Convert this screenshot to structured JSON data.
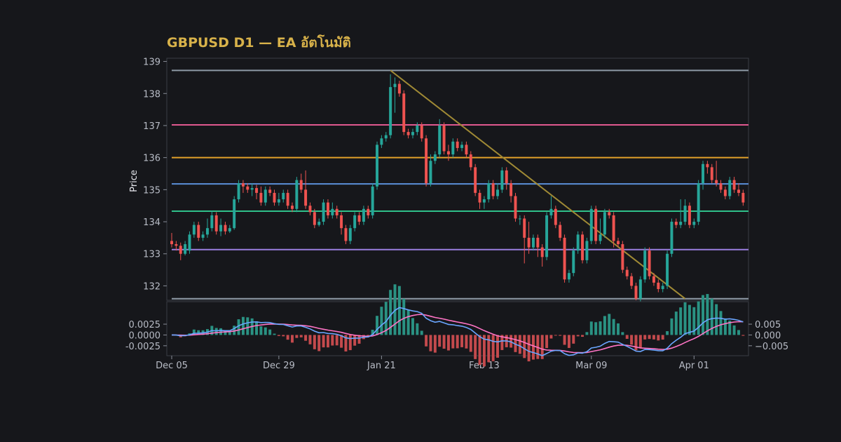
{
  "chart_data": {
    "type": "candlestick",
    "title": "GBPUSD D1 — EA อัตโนมัติ",
    "ylabel": "Price",
    "ylim": [
      131.55,
      139.1
    ],
    "yticks": [
      132,
      133,
      134,
      135,
      136,
      137,
      138,
      139
    ],
    "xtick_labels": [
      "Dec 05",
      "Dec 29",
      "Jan 21",
      "Feb 13",
      "Mar 09",
      "Apr 01"
    ],
    "xtick_index": [
      0,
      24,
      47,
      70,
      94,
      117
    ],
    "candles": [
      [
        133.4,
        133.3,
        133.65,
        133.2
      ],
      [
        133.3,
        133.25,
        133.4,
        133.1
      ],
      [
        133.25,
        133.0,
        133.35,
        132.8
      ],
      [
        133.0,
        133.3,
        133.4,
        132.95
      ],
      [
        133.1,
        133.6,
        133.7,
        133.0
      ],
      [
        133.6,
        133.9,
        134.0,
        133.5
      ],
      [
        133.9,
        133.5,
        134.0,
        133.4
      ],
      [
        133.5,
        133.6,
        133.7,
        133.4
      ],
      [
        133.6,
        133.8,
        134.1,
        133.5
      ],
      [
        133.8,
        134.2,
        134.35,
        133.7
      ],
      [
        134.2,
        133.7,
        134.3,
        133.6
      ],
      [
        133.7,
        133.9,
        134.1,
        133.55
      ],
      [
        133.9,
        133.7,
        134.0,
        133.6
      ],
      [
        133.7,
        133.8,
        133.9,
        133.65
      ],
      [
        133.8,
        134.7,
        134.8,
        133.75
      ],
      [
        134.7,
        135.2,
        135.3,
        134.6
      ],
      [
        135.2,
        135.1,
        135.3,
        134.9
      ],
      [
        135.1,
        135.0,
        135.2,
        134.9
      ],
      [
        135.0,
        135.05,
        135.2,
        134.8
      ],
      [
        135.05,
        134.9,
        135.15,
        134.7
      ],
      [
        134.9,
        134.6,
        135.1,
        134.5
      ],
      [
        134.6,
        135.0,
        135.1,
        134.5
      ],
      [
        135.0,
        134.9,
        135.1,
        134.8
      ],
      [
        134.9,
        134.6,
        135.0,
        134.5
      ],
      [
        134.6,
        134.7,
        134.9,
        134.5
      ],
      [
        134.7,
        134.9,
        135.0,
        134.6
      ],
      [
        134.9,
        134.5,
        135.0,
        134.4
      ],
      [
        134.5,
        134.4,
        134.6,
        134.3
      ],
      [
        134.4,
        135.3,
        135.4,
        134.3
      ],
      [
        135.3,
        135.0,
        135.5,
        134.9
      ],
      [
        135.0,
        134.5,
        135.6,
        134.4
      ],
      [
        134.5,
        134.3,
        134.6,
        134.2
      ],
      [
        134.3,
        133.9,
        134.4,
        133.8
      ],
      [
        133.9,
        134.0,
        134.1,
        133.85
      ],
      [
        134.0,
        134.6,
        134.7,
        133.9
      ],
      [
        134.6,
        134.2,
        134.7,
        134.1
      ],
      [
        134.2,
        134.4,
        134.6,
        134.1
      ],
      [
        134.4,
        134.2,
        134.5,
        134.1
      ],
      [
        134.2,
        133.8,
        134.3,
        133.6
      ],
      [
        133.8,
        133.4,
        133.9,
        133.3
      ],
      [
        133.4,
        133.8,
        133.9,
        133.3
      ],
      [
        133.8,
        134.2,
        134.3,
        133.7
      ],
      [
        134.2,
        134.0,
        134.3,
        133.9
      ],
      [
        134.0,
        134.4,
        134.5,
        133.9
      ],
      [
        134.4,
        134.2,
        134.5,
        134.1
      ],
      [
        134.2,
        135.1,
        135.2,
        134.1
      ],
      [
        135.1,
        136.4,
        136.5,
        135.0
      ],
      [
        136.4,
        136.6,
        136.7,
        136.3
      ],
      [
        136.6,
        136.7,
        136.8,
        136.5
      ],
      [
        136.7,
        138.2,
        138.6,
        136.6
      ],
      [
        138.2,
        138.3,
        138.5,
        137.4
      ],
      [
        138.3,
        138.0,
        138.4,
        137.9
      ],
      [
        138.0,
        136.8,
        138.1,
        136.7
      ],
      [
        136.8,
        136.7,
        136.9,
        136.6
      ],
      [
        136.7,
        136.8,
        136.9,
        136.6
      ],
      [
        136.8,
        137.0,
        137.1,
        136.7
      ],
      [
        137.0,
        136.6,
        137.1,
        136.5
      ],
      [
        136.6,
        135.2,
        136.7,
        135.1
      ],
      [
        135.2,
        135.9,
        136.1,
        135.1
      ],
      [
        135.9,
        136.1,
        136.2,
        135.8
      ],
      [
        136.1,
        137.0,
        137.2,
        136.0
      ],
      [
        137.0,
        136.2,
        137.1,
        136.1
      ],
      [
        136.2,
        136.1,
        136.4,
        135.9
      ],
      [
        136.1,
        136.5,
        136.6,
        136.0
      ],
      [
        136.5,
        136.3,
        136.6,
        136.2
      ],
      [
        136.3,
        136.4,
        136.5,
        136.2
      ],
      [
        136.4,
        136.1,
        136.5,
        136.0
      ],
      [
        136.1,
        135.7,
        136.2,
        135.6
      ],
      [
        135.7,
        134.9,
        135.8,
        134.8
      ],
      [
        134.9,
        134.6,
        135.0,
        134.4
      ],
      [
        134.6,
        134.7,
        134.8,
        134.4
      ],
      [
        134.7,
        135.2,
        135.3,
        134.6
      ],
      [
        135.2,
        134.8,
        135.3,
        134.7
      ],
      [
        134.8,
        135.0,
        135.2,
        134.7
      ],
      [
        135.0,
        135.6,
        135.7,
        134.9
      ],
      [
        135.6,
        135.2,
        135.7,
        135.0
      ],
      [
        135.2,
        134.8,
        135.3,
        134.6
      ],
      [
        134.8,
        134.1,
        134.9,
        134.0
      ],
      [
        134.1,
        134.1,
        134.2,
        133.9
      ],
      [
        134.1,
        133.5,
        134.2,
        132.7
      ],
      [
        133.5,
        133.2,
        134.0,
        133.0
      ],
      [
        133.2,
        133.5,
        133.6,
        133.1
      ],
      [
        133.5,
        133.2,
        133.6,
        132.9
      ],
      [
        133.2,
        132.9,
        133.3,
        132.6
      ],
      [
        132.9,
        134.2,
        134.3,
        132.8
      ],
      [
        134.2,
        134.4,
        134.8,
        134.1
      ],
      [
        134.4,
        133.9,
        134.5,
        133.8
      ],
      [
        133.9,
        133.5,
        134.0,
        133.4
      ],
      [
        133.5,
        132.2,
        133.6,
        132.1
      ],
      [
        132.2,
        132.4,
        132.5,
        132.1
      ],
      [
        132.4,
        133.1,
        133.2,
        132.3
      ],
      [
        133.1,
        133.6,
        133.7,
        133.0
      ],
      [
        133.6,
        132.8,
        133.7,
        132.7
      ],
      [
        132.8,
        133.4,
        133.5,
        132.7
      ],
      [
        133.4,
        134.4,
        134.5,
        133.3
      ],
      [
        134.4,
        133.4,
        134.5,
        133.3
      ],
      [
        133.4,
        133.6,
        134.1,
        133.3
      ],
      [
        133.6,
        134.3,
        134.4,
        133.5
      ],
      [
        134.3,
        134.2,
        134.4,
        134.1
      ],
      [
        134.2,
        133.4,
        134.3,
        133.2
      ],
      [
        133.4,
        133.3,
        133.5,
        133.2
      ],
      [
        133.3,
        132.5,
        133.4,
        132.4
      ],
      [
        132.5,
        132.3,
        132.6,
        132.2
      ],
      [
        132.3,
        132.0,
        132.4,
        131.9
      ],
      [
        132.0,
        131.6,
        132.1,
        131.55
      ],
      [
        131.6,
        132.2,
        132.3,
        131.5
      ],
      [
        132.2,
        133.1,
        133.2,
        132.1
      ],
      [
        133.1,
        132.3,
        133.2,
        132.2
      ],
      [
        132.3,
        132.1,
        132.4,
        132.0
      ],
      [
        132.1,
        131.9,
        132.2,
        131.8
      ],
      [
        131.9,
        132.0,
        132.1,
        131.8
      ],
      [
        132.0,
        133.0,
        133.1,
        131.9
      ],
      [
        133.0,
        134.0,
        134.1,
        132.9
      ],
      [
        134.0,
        133.9,
        134.1,
        133.8
      ],
      [
        133.9,
        134.0,
        134.7,
        133.8
      ],
      [
        134.0,
        134.5,
        134.7,
        133.9
      ],
      [
        134.5,
        133.9,
        134.6,
        133.8
      ],
      [
        133.9,
        134.0,
        134.1,
        133.8
      ],
      [
        134.0,
        135.2,
        135.3,
        133.9
      ],
      [
        135.2,
        135.8,
        135.9,
        135.0
      ],
      [
        135.8,
        135.7,
        135.9,
        135.5
      ],
      [
        135.7,
        135.3,
        135.8,
        135.2
      ],
      [
        135.3,
        135.2,
        135.9,
        135.1
      ],
      [
        135.2,
        135.0,
        135.3,
        134.9
      ],
      [
        135.0,
        134.8,
        135.1,
        134.7
      ],
      [
        134.8,
        135.3,
        135.4,
        134.7
      ],
      [
        135.3,
        135.0,
        135.4,
        134.9
      ],
      [
        135.0,
        134.9,
        135.2,
        134.8
      ],
      [
        134.9,
        134.6,
        135.0,
        134.5
      ]
    ],
    "levels": [
      {
        "price": 138.72,
        "color": "#8e9aa6"
      },
      {
        "price": 137.02,
        "color": "#e0588f"
      },
      {
        "price": 136.0,
        "color": "#e3a12a"
      },
      {
        "price": 135.18,
        "color": "#5b8fd8"
      },
      {
        "price": 134.33,
        "color": "#2fc08a"
      },
      {
        "price": 133.13,
        "color": "#9a7fe0"
      },
      {
        "price": 131.6,
        "color": "#8e9aa6"
      }
    ],
    "trendline": {
      "from_index": 49,
      "from_price": 138.72,
      "to_index": 115,
      "to_price": 131.6,
      "color": "#a08a35"
    },
    "macd": {
      "ylim": [
        -0.0048,
        0.0077
      ],
      "yticks_left": [
        0.0025,
        0.0,
        -0.0025
      ],
      "yticks_left_labels": [
        "0.0025",
        "0.0000",
        "-0.0025"
      ],
      "yticks_right": [
        0.005,
        0.0,
        -0.005
      ],
      "yticks_right_labels": [
        "0.005",
        "0.000",
        "−0.005"
      ],
      "hist_pos_color": "#2a9283",
      "hist_neg_color": "#c44a4d",
      "macd_color": "#6aa6ff",
      "signal_color": "#ff74c6"
    },
    "colors": {
      "up": "#26a69a",
      "down": "#ef5350",
      "axis": "#3a3d45",
      "bg": "#16171b"
    }
  }
}
